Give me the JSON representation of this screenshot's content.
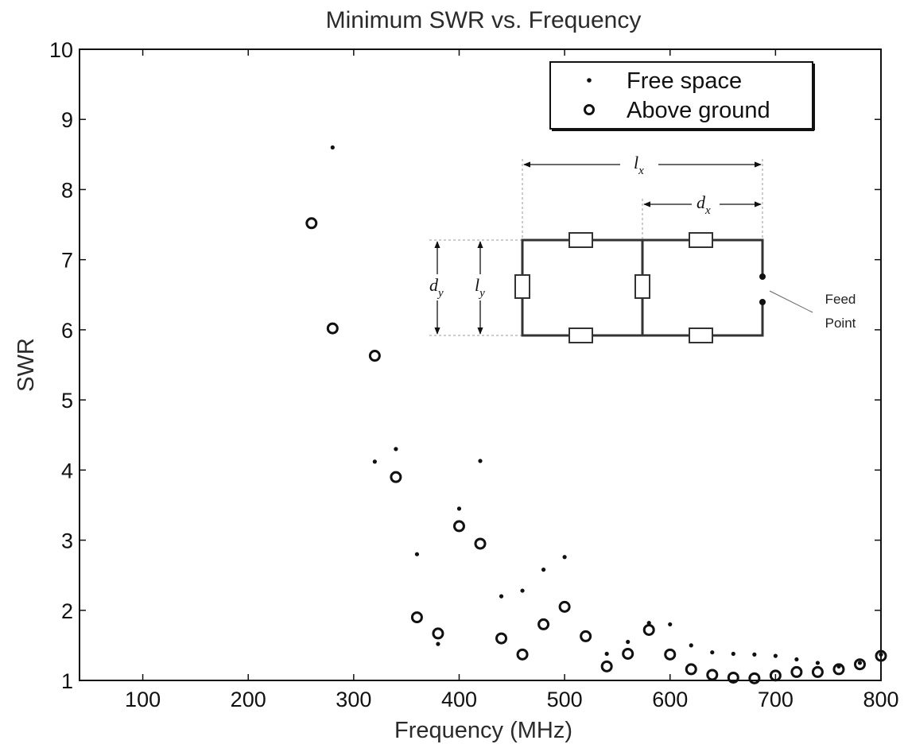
{
  "chart_data": {
    "type": "scatter",
    "title": "Minimum SWR vs. Frequency",
    "xlabel": "Frequency (MHz)",
    "ylabel": "SWR",
    "xlim": [
      40,
      800
    ],
    "ylim": [
      1,
      10
    ],
    "xticks": [
      100,
      200,
      300,
      400,
      500,
      600,
      700,
      800
    ],
    "yticks": [
      1,
      2,
      3,
      4,
      5,
      6,
      7,
      8,
      9,
      10
    ],
    "grid": false,
    "legend": "top-right",
    "series": [
      {
        "name": "Free space",
        "marker": "dot",
        "x": [
          280,
          320,
          340,
          360,
          380,
          400,
          420,
          440,
          460,
          480,
          500,
          540,
          560,
          580,
          600,
          620,
          640,
          660,
          680,
          700,
          720,
          740,
          760,
          780,
          800
        ],
        "y": [
          8.6,
          4.12,
          4.3,
          2.8,
          1.52,
          3.45,
          4.13,
          2.2,
          2.28,
          2.58,
          2.76,
          1.38,
          1.55,
          1.82,
          1.8,
          1.5,
          1.4,
          1.38,
          1.37,
          1.35,
          1.3,
          1.25,
          1.2,
          1.25,
          1.37
        ]
      },
      {
        "name": "Above ground",
        "marker": "circle",
        "x": [
          260,
          280,
          320,
          340,
          360,
          380,
          400,
          420,
          440,
          460,
          480,
          500,
          520,
          540,
          560,
          580,
          600,
          620,
          640,
          660,
          680,
          700,
          720,
          740,
          760,
          780,
          800
        ],
        "y": [
          7.52,
          6.02,
          5.63,
          3.9,
          1.9,
          1.67,
          3.2,
          2.95,
          1.6,
          1.37,
          1.8,
          2.05,
          1.63,
          1.2,
          1.38,
          1.72,
          1.37,
          1.16,
          1.08,
          1.04,
          1.03,
          1.07,
          1.12,
          1.12,
          1.16,
          1.23,
          1.35
        ]
      }
    ],
    "inset": {
      "labels": {
        "lx": "l",
        "lx_sub": "x",
        "dx": "d",
        "dx_sub": "x",
        "dy": "d",
        "dy_sub": "y",
        "ly": "l",
        "ly_sub": "y"
      },
      "feed_point_line1": "Feed",
      "feed_point_line2": "Point"
    }
  }
}
